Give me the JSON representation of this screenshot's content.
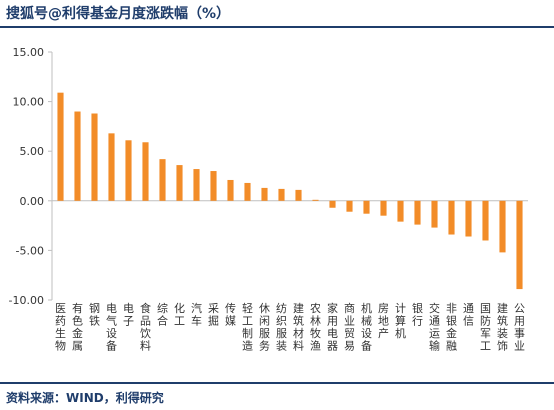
{
  "header": {
    "title": "搜狐号@利得基金月度涨跌幅（%）"
  },
  "footer": {
    "source": "资料来源：WIND，利得研究"
  },
  "chart_data": {
    "type": "bar",
    "title": "月度涨跌幅（%）",
    "xlabel": "",
    "ylabel": "",
    "ylim": [
      -10,
      15
    ],
    "yticks": [
      "15.00",
      "10.00",
      "5.00",
      "0.00",
      "-5.00",
      "-10.00"
    ],
    "ytick_values": [
      15,
      10,
      5,
      0,
      -5,
      -10
    ],
    "grid": false,
    "legend": "none",
    "bar_color": "#f28c28",
    "categories": [
      "医药生物",
      "有色金属",
      "钢铁",
      "电气设备",
      "电子",
      "食品饮料",
      "综合",
      "化工",
      "汽车",
      "采掘",
      "传媒",
      "轻工制造",
      "休闲服务",
      "纺织服装",
      "建筑材料",
      "农林牧渔",
      "家用电器",
      "商业贸易",
      "机械设备",
      "房地产",
      "计算机",
      "银行",
      "交通运输",
      "非银金融",
      "通信",
      "国防军工",
      "建筑装饰",
      "公用事业"
    ],
    "values": [
      10.9,
      9.0,
      8.8,
      6.8,
      6.1,
      5.9,
      4.2,
      3.6,
      3.2,
      3.0,
      2.1,
      1.8,
      1.3,
      1.2,
      1.1,
      0.1,
      -0.7,
      -1.1,
      -1.3,
      -1.5,
      -2.1,
      -2.4,
      -2.7,
      -3.4,
      -3.6,
      -4.0,
      -5.2,
      -8.9
    ]
  }
}
